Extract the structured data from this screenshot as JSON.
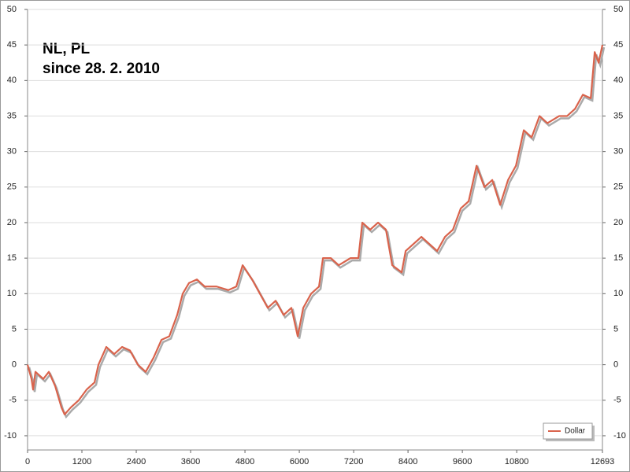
{
  "chart_data": {
    "type": "line",
    "annotations": [
      "NL, PL",
      "since 28. 2. 2010"
    ],
    "x": [
      0,
      87,
      122,
      174,
      348,
      470,
      609,
      748,
      817,
      957,
      1130,
      1304,
      1478,
      1565,
      1739,
      1913,
      2087,
      2261,
      2435,
      2609,
      2783,
      2957,
      3130,
      3304,
      3426,
      3565,
      3739,
      3913,
      4174,
      4435,
      4609,
      4748,
      4957,
      5130,
      5304,
      5478,
      5652,
      5826,
      5965,
      6087,
      6261,
      6435,
      6522,
      6696,
      6870,
      7130,
      7304,
      7391,
      7565,
      7739,
      7913,
      8052,
      8261,
      8348,
      8522,
      8696,
      8870,
      9043,
      9217,
      9391,
      9565,
      9739,
      9913,
      10087,
      10261,
      10435,
      10609,
      10783,
      10957,
      11130,
      11304,
      11478,
      11739,
      11913,
      12087,
      12261,
      12435,
      12522,
      12609,
      12693
    ],
    "series": [
      {
        "name": "Dollar",
        "color": "#d9634c",
        "values": [
          0,
          -2,
          -3.5,
          -1,
          -2,
          -1,
          -3,
          -6,
          -7,
          -6,
          -5,
          -3.5,
          -2.5,
          0,
          2.5,
          1.5,
          2.5,
          2,
          0,
          -1,
          1,
          3.5,
          4,
          7,
          10,
          11.5,
          12,
          11,
          11,
          10.5,
          11,
          14,
          12,
          10,
          8,
          9,
          7,
          8,
          4,
          8,
          10,
          11,
          15,
          15,
          14,
          15,
          15,
          20,
          19,
          20,
          19,
          14,
          13,
          16,
          17,
          18,
          17,
          16,
          18,
          19,
          22,
          23,
          28,
          25,
          26,
          22.5,
          26,
          28,
          33,
          32,
          35,
          34,
          35,
          35,
          36,
          38,
          37.5,
          44,
          42.5,
          45
        ]
      }
    ],
    "xlim": [
      0,
      12693
    ],
    "xticks": [
      0,
      1200,
      2400,
      3600,
      4800,
      6000,
      7200,
      8400,
      9600,
      10800,
      12693
    ],
    "ylim": [
      -12,
      50
    ],
    "yticks": [
      -10,
      -5,
      0,
      5,
      10,
      15,
      20,
      25,
      30,
      35,
      40,
      45,
      50
    ],
    "grid": true,
    "legend": "lower right"
  }
}
